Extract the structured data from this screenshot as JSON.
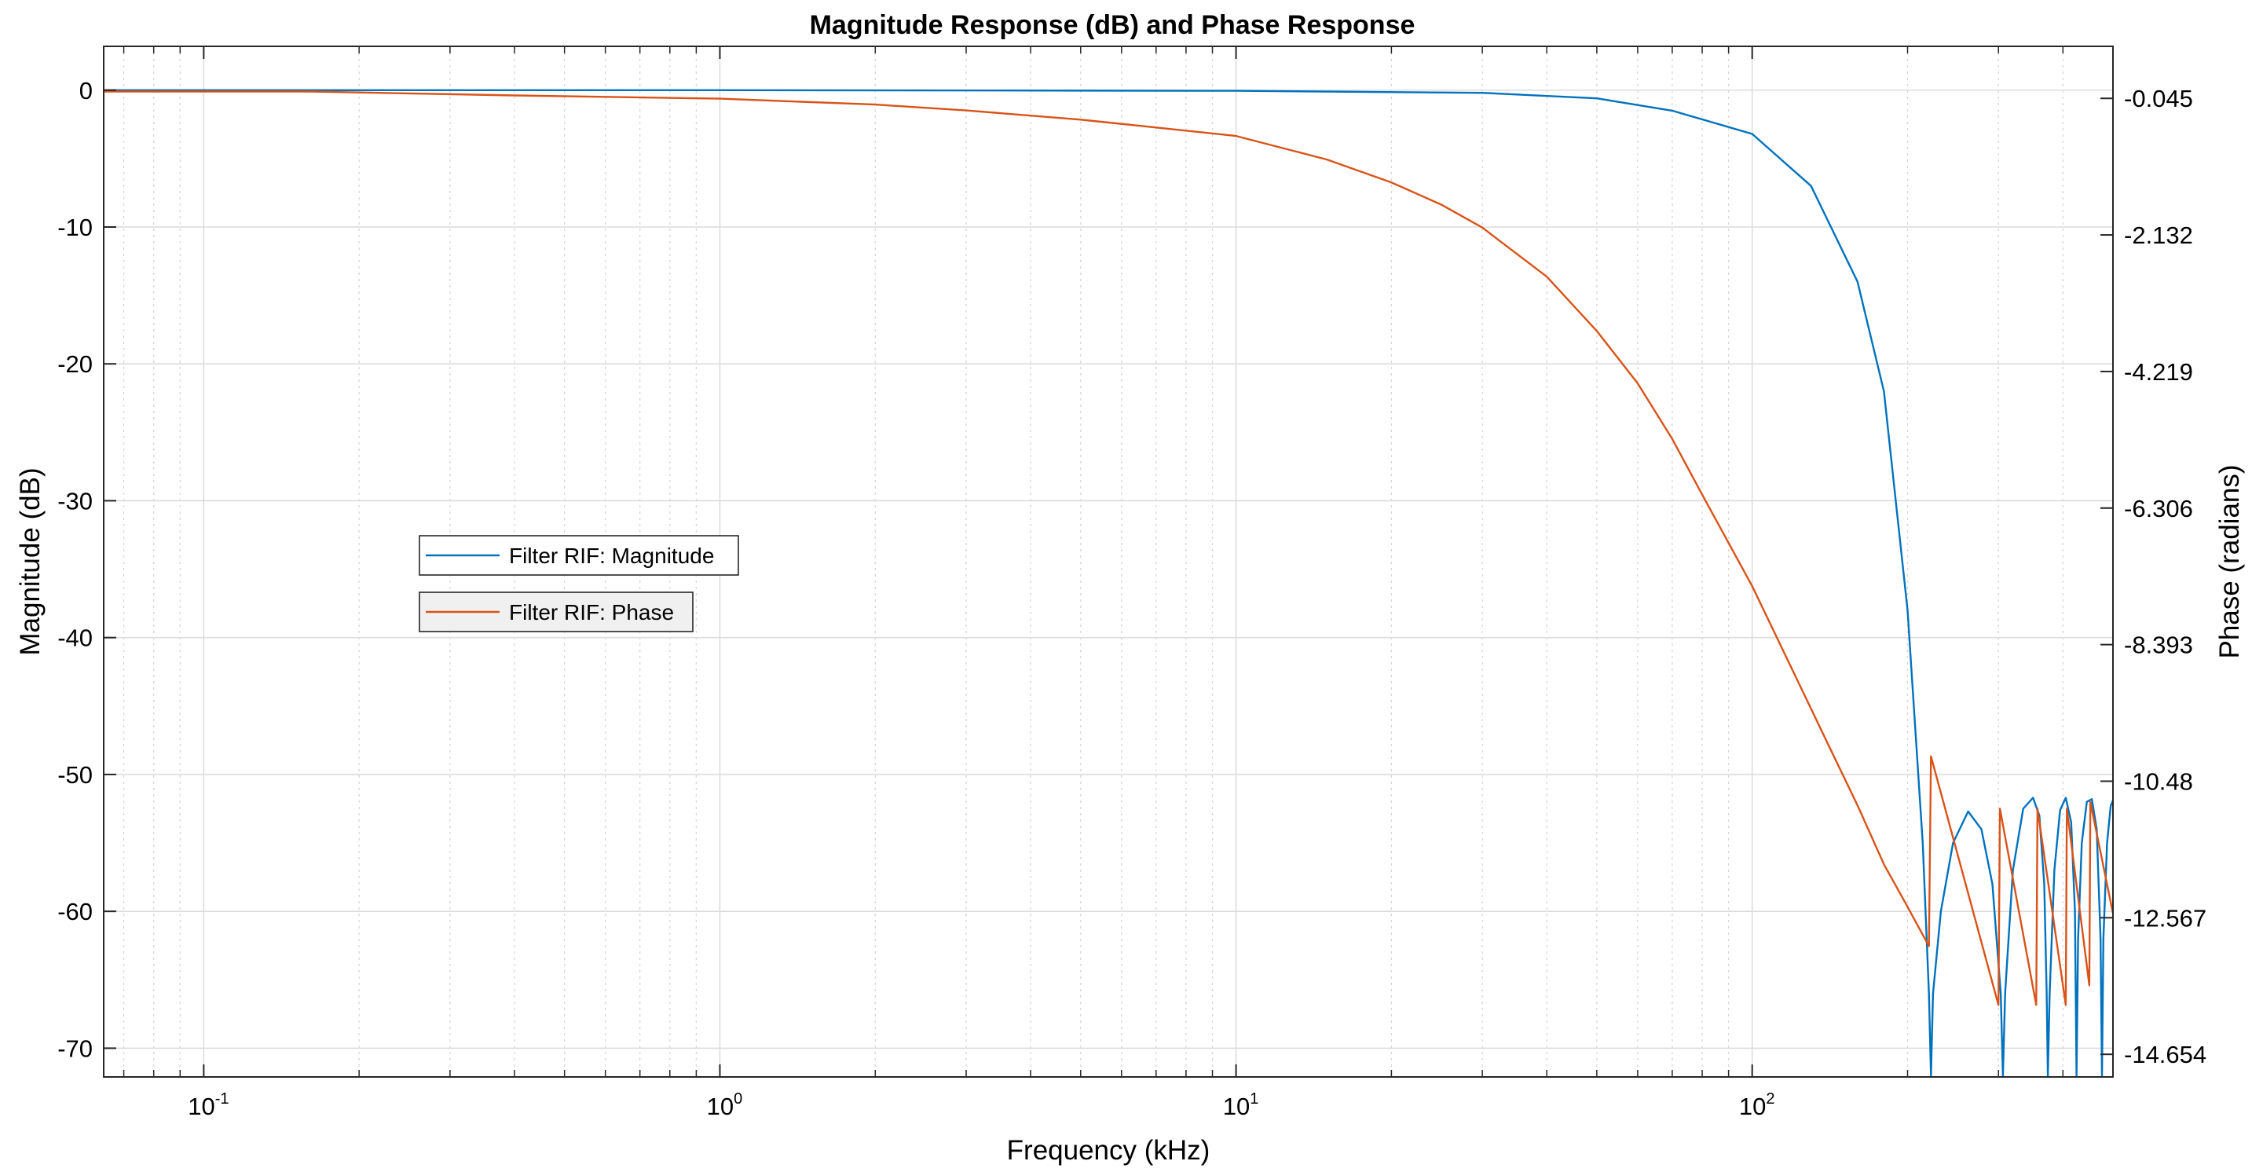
{
  "chart_data": {
    "type": "line",
    "title": "Magnitude Response (dB) and Phase Response",
    "xlabel": "Frequency (kHz)",
    "ylabel_left": "Magnitude (dB)",
    "ylabel_right": "Phase (radians)",
    "x_scale": "log",
    "xlim": [
      0.064,
      500
    ],
    "x_ticks": [
      {
        "value": 0.1,
        "base": "10",
        "exp": "-1"
      },
      {
        "value": 1,
        "base": "10",
        "exp": "0"
      },
      {
        "value": 10,
        "base": "10",
        "exp": "1"
      },
      {
        "value": 100,
        "base": "10",
        "exp": "2"
      }
    ],
    "ylim_left": [
      -72.1,
      3.2
    ],
    "ylim_right": [
      -15.0,
      0.75
    ],
    "y_ticks_left": [
      "0",
      "-10",
      "-20",
      "-30",
      "-40",
      "-50",
      "-60",
      "-70"
    ],
    "y_ticks_right": [
      "-0.045",
      "-2.132",
      "-4.219",
      "-6.306",
      "-8.393",
      "-10.48",
      "-12.567",
      "-14.654"
    ],
    "y_ticks_right_values": [
      -0.045,
      -2.132,
      -4.219,
      -6.306,
      -8.393,
      -10.48,
      -12.567,
      -14.654
    ],
    "grid": true,
    "legend_position": "middle-left",
    "series": [
      {
        "name": "Filter RIF: Magnitude",
        "axis": "left",
        "color": "#0072BD",
        "points": [
          [
            0.064,
            0
          ],
          [
            1,
            0
          ],
          [
            10,
            -0.05
          ],
          [
            30,
            -0.2
          ],
          [
            50,
            -0.6
          ],
          [
            70,
            -1.5
          ],
          [
            100,
            -3.2
          ],
          [
            130,
            -7
          ],
          [
            160,
            -14
          ],
          [
            180,
            -22
          ],
          [
            200,
            -38
          ],
          [
            214,
            -55
          ],
          [
            220,
            -66
          ],
          [
            222,
            -72
          ],
          [
            224,
            -66
          ],
          [
            232,
            -60
          ],
          [
            245,
            -55
          ],
          [
            262,
            -52.7
          ],
          [
            278,
            -54
          ],
          [
            292,
            -58
          ],
          [
            303,
            -66
          ],
          [
            306,
            -72
          ],
          [
            309,
            -66
          ],
          [
            320,
            -57
          ],
          [
            335,
            -52.5
          ],
          [
            350,
            -51.7
          ],
          [
            360,
            -53
          ],
          [
            368,
            -58
          ],
          [
            372,
            -66
          ],
          [
            374,
            -72
          ],
          [
            377,
            -66
          ],
          [
            385,
            -57
          ],
          [
            395,
            -52.6
          ],
          [
            405,
            -51.7
          ],
          [
            415,
            -53.5
          ],
          [
            422,
            -60
          ],
          [
            425,
            -72
          ],
          [
            428,
            -62
          ],
          [
            435,
            -55
          ],
          [
            445,
            -52.0
          ],
          [
            455,
            -51.8
          ],
          [
            465,
            -54
          ],
          [
            473,
            -62
          ],
          [
            476,
            -72
          ],
          [
            479,
            -62
          ],
          [
            487,
            -55
          ],
          [
            495,
            -52.3
          ],
          [
            500,
            -51.9
          ]
        ]
      },
      {
        "name": "Filter RIF: Phase",
        "axis": "right",
        "color": "#D95319",
        "points": [
          [
            0.064,
            0.06
          ],
          [
            0.16,
            0.06
          ],
          [
            0.4,
            0.0
          ],
          [
            1,
            -0.05
          ],
          [
            2,
            -0.14
          ],
          [
            3,
            -0.23
          ],
          [
            5,
            -0.37
          ],
          [
            7,
            -0.49
          ],
          [
            10,
            -0.62
          ],
          [
            15,
            -0.98
          ],
          [
            20,
            -1.33
          ],
          [
            25,
            -1.67
          ],
          [
            30,
            -2.02
          ],
          [
            40,
            -2.77
          ],
          [
            50,
            -3.6
          ],
          [
            60,
            -4.4
          ],
          [
            70,
            -5.25
          ],
          [
            80,
            -6.1
          ],
          [
            100,
            -7.5
          ],
          [
            120,
            -8.8
          ],
          [
            140,
            -9.9
          ],
          [
            160,
            -10.85
          ],
          [
            180,
            -11.75
          ],
          [
            200,
            -12.4
          ],
          [
            220,
            -13.0
          ],
          [
            222,
            -10.1
          ],
          [
            300,
            -13.9
          ],
          [
            302,
            -10.9
          ],
          [
            355,
            -13.9
          ],
          [
            357,
            -10.9
          ],
          [
            405,
            -13.9
          ],
          [
            407,
            -10.9
          ],
          [
            450,
            -13.6
          ],
          [
            452,
            -10.8
          ],
          [
            500,
            -12.5
          ]
        ]
      }
    ]
  }
}
